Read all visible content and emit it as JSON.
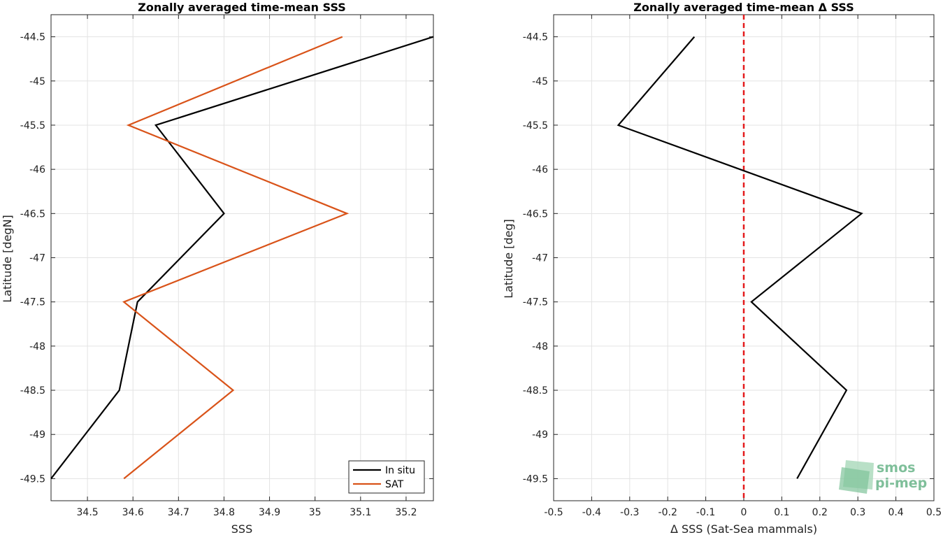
{
  "chart_data": [
    {
      "type": "line",
      "title": "Zonally averaged time-mean SSS",
      "xlabel": "SSS",
      "ylabel": "Latitude [degN]",
      "xlim": [
        34.42,
        35.26
      ],
      "ylim": [
        -49.75,
        -44.25
      ],
      "xticks": [
        "34.5",
        "34.6",
        "34.7",
        "34.8",
        "34.9",
        "35",
        "35.1",
        "35.2"
      ],
      "yticks": [
        "-44.5",
        "-45",
        "-45.5",
        "-46",
        "-46.5",
        "-47",
        "-47.5",
        "-48",
        "-48.5",
        "-49",
        "-49.5"
      ],
      "grid": true,
      "legend_location": "bottom-right",
      "series": [
        {
          "name": "In situ",
          "color": "#000000",
          "points": [
            [
              35.26,
              -44.5
            ],
            [
              34.65,
              -45.5
            ],
            [
              34.8,
              -46.5
            ],
            [
              34.61,
              -47.5
            ],
            [
              34.57,
              -48.5
            ],
            [
              34.42,
              -49.5
            ]
          ]
        },
        {
          "name": "SAT",
          "color": "#d95319",
          "points": [
            [
              35.06,
              -44.5
            ],
            [
              34.59,
              -45.5
            ],
            [
              35.07,
              -46.5
            ],
            [
              34.58,
              -47.5
            ],
            [
              34.82,
              -48.5
            ],
            [
              34.58,
              -49.5
            ]
          ]
        }
      ]
    },
    {
      "type": "line",
      "title": "Zonally averaged time-mean Δ SSS",
      "xlabel": "Δ SSS (Sat-Sea mammals)",
      "ylabel": "Latitude [deg]",
      "xlim": [
        -0.5,
        0.5
      ],
      "ylim": [
        -49.75,
        -44.25
      ],
      "xticks": [
        "-0.5",
        "-0.4",
        "-0.3",
        "-0.2",
        "-0.1",
        "0",
        "0.1",
        "0.2",
        "0.3",
        "0.4",
        "0.5"
      ],
      "yticks": [
        "-44.5",
        "-45",
        "-45.5",
        "-46",
        "-46.5",
        "-47",
        "-47.5",
        "-48",
        "-48.5",
        "-49",
        "-49.5"
      ],
      "grid": true,
      "reference_line": {
        "x": 0,
        "color": "#e41a1c",
        "style": "dashed"
      },
      "series": [
        {
          "color": "#000000",
          "points": [
            [
              -0.13,
              -44.5
            ],
            [
              -0.33,
              -45.5
            ],
            [
              0.31,
              -46.5
            ],
            [
              0.02,
              -47.5
            ],
            [
              0.27,
              -48.5
            ],
            [
              0.14,
              -49.5
            ]
          ]
        }
      ]
    }
  ],
  "watermark": {
    "line1": "smos",
    "line2": "pi-mep"
  }
}
